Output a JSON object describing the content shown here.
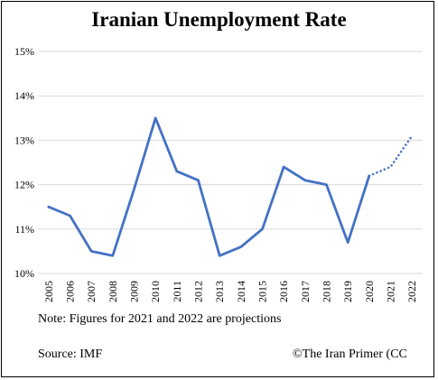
{
  "chart_data": {
    "type": "line",
    "title": "Iranian Unemployment Rate",
    "xlabel": "",
    "ylabel": "",
    "x": [
      "2005",
      "2006",
      "2007",
      "2008",
      "2009",
      "2010",
      "2011",
      "2012",
      "2013",
      "2014",
      "2015",
      "2016",
      "2017",
      "2018",
      "2019",
      "2020",
      "2021",
      "2022"
    ],
    "y_ticks": [
      "10%",
      "11%",
      "12%",
      "13%",
      "14%",
      "15%"
    ],
    "ylim": [
      10,
      15
    ],
    "grid": "horizontal",
    "series": [
      {
        "values": [
          11.5,
          11.3,
          10.5,
          10.4,
          11.9,
          13.5,
          12.3,
          12.1,
          10.4,
          10.6,
          11.0,
          12.4,
          12.1,
          12.0,
          10.7,
          12.2,
          null,
          null
        ],
        "style": "solid",
        "color": "#4472C4"
      },
      {
        "values": [
          null,
          null,
          null,
          null,
          null,
          null,
          null,
          null,
          null,
          null,
          null,
          null,
          null,
          null,
          null,
          12.2,
          12.4,
          13.1
        ],
        "style": "dotted",
        "color": "#4472C4"
      }
    ],
    "note": "Note: Figures for 2021 and 2022 are projections",
    "source": "Source: IMF",
    "credit": "©The Iran Primer (CC"
  },
  "colors": {
    "line": "#4472C4",
    "grid": "#d9d9d9",
    "border": "#000000"
  }
}
